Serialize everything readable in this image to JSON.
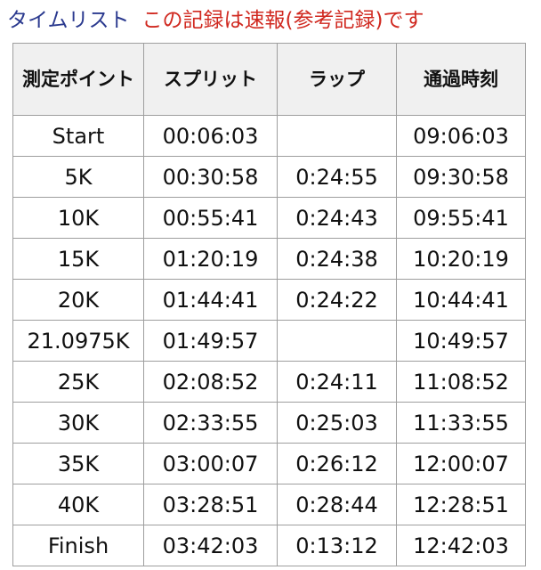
{
  "header": {
    "title": "タイムリスト",
    "note": "この記録は速報(参考記録)です"
  },
  "table": {
    "columns": [
      "測定ポイント",
      "スプリット",
      "ラップ",
      "通過時刻"
    ],
    "rows": [
      {
        "point": "Start",
        "split": "00:06:03",
        "lap": "",
        "time": "09:06:03"
      },
      {
        "point": "5K",
        "split": "00:30:58",
        "lap": "0:24:55",
        "time": "09:30:58"
      },
      {
        "point": "10K",
        "split": "00:55:41",
        "lap": "0:24:43",
        "time": "09:55:41"
      },
      {
        "point": "15K",
        "split": "01:20:19",
        "lap": "0:24:38",
        "time": "10:20:19"
      },
      {
        "point": "20K",
        "split": "01:44:41",
        "lap": "0:24:22",
        "time": "10:44:41"
      },
      {
        "point": "21.0975K",
        "split": "01:49:57",
        "lap": "",
        "time": "10:49:57"
      },
      {
        "point": "25K",
        "split": "02:08:52",
        "lap": "0:24:11",
        "time": "11:08:52"
      },
      {
        "point": "30K",
        "split": "02:33:55",
        "lap": "0:25:03",
        "time": "11:33:55"
      },
      {
        "point": "35K",
        "split": "03:00:07",
        "lap": "0:26:12",
        "time": "12:00:07"
      },
      {
        "point": "40K",
        "split": "03:28:51",
        "lap": "0:28:44",
        "time": "12:28:51"
      },
      {
        "point": "Finish",
        "split": "03:42:03",
        "lap": "0:13:12",
        "time": "12:42:03"
      }
    ]
  },
  "colors": {
    "title": "#2b3a8f",
    "note": "#d0281f",
    "header_bg": "#f0f0f0",
    "border": "#9e9e9e"
  }
}
